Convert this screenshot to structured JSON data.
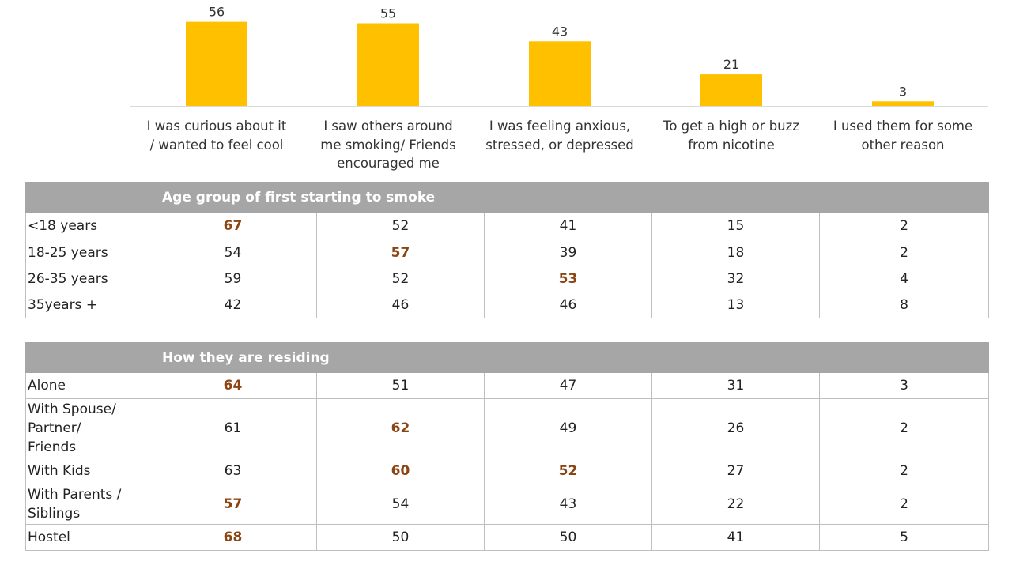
{
  "chart_data": {
    "type": "bar",
    "categories": [
      "I was curious about it / wanted to feel cool",
      "I saw others around me smoking/ Friends encouraged me",
      "I was feeling anxious, stressed, or depressed",
      "To get a high or buzz from nicotine",
      "I used them for some other reason"
    ],
    "category_lines": [
      [
        "I was curious about it",
        "/ wanted to feel cool"
      ],
      [
        "I saw others around",
        "me smoking/ Friends",
        "encouraged me"
      ],
      [
        "I was feeling anxious,",
        "stressed, or depressed"
      ],
      [
        "To get a high or buzz",
        "from nicotine"
      ],
      [
        "I used them for some",
        "other reason"
      ]
    ],
    "values": [
      56,
      55,
      43,
      21,
      3
    ],
    "data_labels": [
      "56",
      "55",
      "43",
      "21",
      "3"
    ],
    "ylim": [
      0,
      60
    ],
    "grid": false,
    "bar_color": "#FFC000"
  },
  "tables": [
    {
      "header": "Age group of first starting to smoke",
      "rows": [
        {
          "label": [
            "<18 years"
          ],
          "values": [
            "67",
            "52",
            "41",
            "15",
            "2"
          ],
          "highlight": [
            0
          ]
        },
        {
          "label": [
            "18-25 years"
          ],
          "values": [
            "54",
            "57",
            "39",
            "18",
            "2"
          ],
          "highlight": [
            1
          ]
        },
        {
          "label": [
            "26-35 years"
          ],
          "values": [
            "59",
            "52",
            "53",
            "32",
            "4"
          ],
          "highlight": [
            2
          ]
        },
        {
          "label": [
            "35years +"
          ],
          "values": [
            "42",
            "46",
            "46",
            "13",
            "8"
          ],
          "highlight": []
        }
      ]
    },
    {
      "header": "How they are residing",
      "rows": [
        {
          "label": [
            "Alone"
          ],
          "values": [
            "64",
            "51",
            "47",
            "31",
            "3"
          ],
          "highlight": [
            0
          ]
        },
        {
          "label": [
            "With Spouse/",
            "Partner/",
            "Friends"
          ],
          "values": [
            "61",
            "62",
            "49",
            "26",
            "2"
          ],
          "highlight": [
            1
          ]
        },
        {
          "label": [
            "With Kids"
          ],
          "values": [
            "63",
            "60",
            "52",
            "27",
            "2"
          ],
          "highlight": [
            1,
            2
          ]
        },
        {
          "label": [
            "With Parents /",
            "Siblings"
          ],
          "values": [
            "57",
            "54",
            "43",
            "22",
            "2"
          ],
          "highlight": [
            0
          ]
        },
        {
          "label": [
            "Hostel"
          ],
          "values": [
            "68",
            "50",
            "50",
            "41",
            "5"
          ],
          "highlight": [
            0
          ]
        }
      ]
    }
  ],
  "colors": {
    "bar": "#FFC000",
    "highlight_text": "#8B4513",
    "header_bg": "#A6A6A6",
    "border": "#BFBFBF"
  }
}
